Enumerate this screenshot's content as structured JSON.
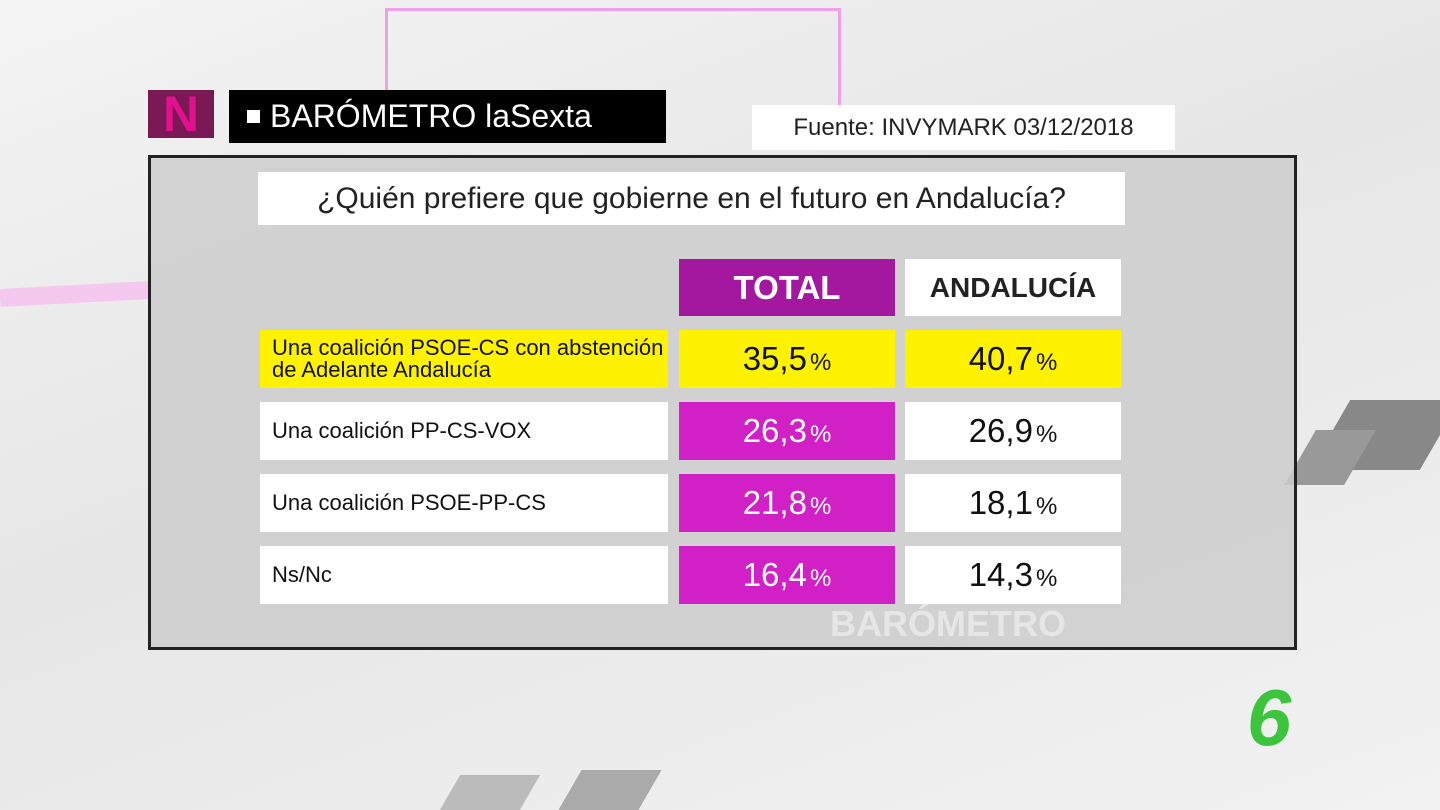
{
  "header": {
    "logo": "N",
    "brand": "BARÓMETRO laSexta",
    "source": "Fuente: INVYMARK 03/12/2018"
  },
  "question": "¿Quién prefiere que gobierne en el futuro en Andalucía?",
  "table": {
    "columns": [
      "TOTAL",
      "ANDALUCÍA"
    ],
    "rows": [
      {
        "label": "Una coalición PSOE-CS con abstención de Adelante Andalucía",
        "cells": [
          {
            "value": "35,5",
            "unit": "%"
          },
          {
            "value": "40,7",
            "unit": "%"
          }
        ]
      },
      {
        "label": "Una coalición PP-CS-VOX",
        "cells": [
          {
            "value": "26,3",
            "unit": "%"
          },
          {
            "value": "26,9",
            "unit": "%"
          }
        ]
      },
      {
        "label": "Una coalición PSOE-PP-CS",
        "cells": [
          {
            "value": "21,8",
            "unit": "%"
          },
          {
            "value": "18,1",
            "unit": "%"
          }
        ]
      },
      {
        "label": "Ns/Nc",
        "cells": [
          {
            "value": "16,4",
            "unit": "%"
          },
          {
            "value": "14,3",
            "unit": "%"
          }
        ]
      }
    ]
  },
  "background": {
    "watermark": "BARÓMETRO"
  },
  "channel_logo": "6"
}
